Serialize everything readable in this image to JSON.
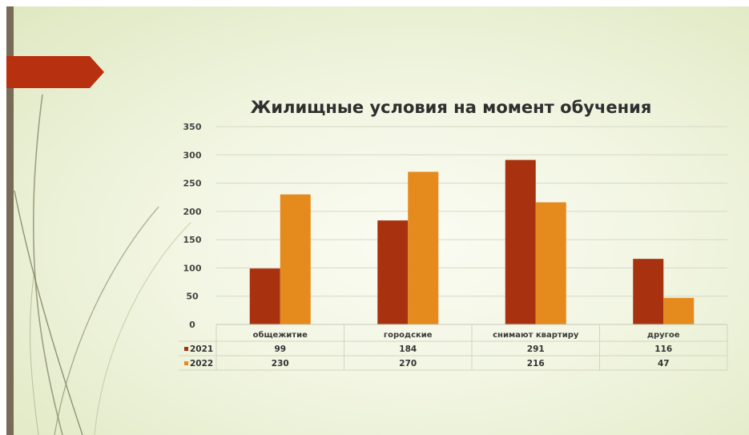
{
  "colors": {
    "series_2021": "#a8320f",
    "series_2022": "#e58a1c",
    "banner": "#b7300f",
    "left_bar": "#7a6a58"
  },
  "chart_data": {
    "type": "bar",
    "title": "Жилищные условия на момент обучения",
    "categories": [
      "общежитие",
      "городские",
      "снимают квартиру",
      "другое"
    ],
    "series": [
      {
        "name": "2021",
        "values": [
          99,
          184,
          291,
          116
        ]
      },
      {
        "name": "2022",
        "values": [
          230,
          270,
          216,
          47
        ]
      }
    ],
    "ylim": [
      0,
      350
    ],
    "yticks": [
      0,
      50,
      100,
      150,
      200,
      250,
      300,
      350
    ],
    "grid": true,
    "data_table": true
  }
}
